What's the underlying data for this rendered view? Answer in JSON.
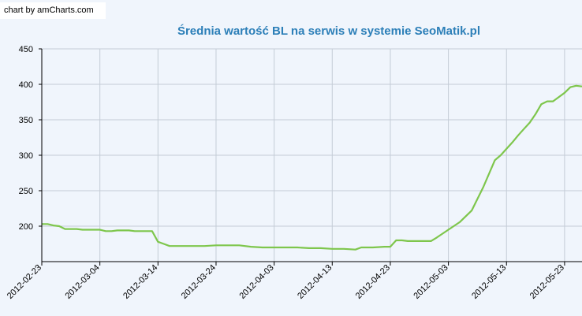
{
  "credit": "chart by amCharts.com",
  "chart_data": {
    "type": "line",
    "title": "Średnia wartość BL na serwis w systemie SeoMatik.pl",
    "xlabel": "",
    "ylabel": "",
    "ylim": [
      150,
      450
    ],
    "xlim": [
      "2012-02-23",
      "2012-05-26"
    ],
    "grid": true,
    "y_ticks": [
      "200",
      "250",
      "300",
      "350",
      "400",
      "450"
    ],
    "x_ticks": [
      "2012-02-23",
      "2012-03-04",
      "2012-03-14",
      "2012-03-24",
      "2012-04-03",
      "2012-04-13",
      "2012-04-23",
      "2012-05-03",
      "2012-05-13",
      "2012-05-23"
    ],
    "series": [
      {
        "color": "#7ec64c",
        "x": [
          "2012-02-23",
          "2012-02-24",
          "2012-02-25",
          "2012-02-26",
          "2012-02-27",
          "2012-02-28",
          "2012-02-29",
          "2012-03-01",
          "2012-03-02",
          "2012-03-03",
          "2012-03-04",
          "2012-03-05",
          "2012-03-06",
          "2012-03-07",
          "2012-03-08",
          "2012-03-09",
          "2012-03-10",
          "2012-03-11",
          "2012-03-12",
          "2012-03-13",
          "2012-03-14",
          "2012-03-15",
          "2012-03-16",
          "2012-03-18",
          "2012-03-20",
          "2012-03-22",
          "2012-03-24",
          "2012-03-26",
          "2012-03-28",
          "2012-03-30",
          "2012-04-01",
          "2012-04-03",
          "2012-04-05",
          "2012-04-07",
          "2012-04-09",
          "2012-04-11",
          "2012-04-13",
          "2012-04-15",
          "2012-04-17",
          "2012-04-18",
          "2012-04-19",
          "2012-04-20",
          "2012-04-22",
          "2012-04-23",
          "2012-04-24",
          "2012-04-25",
          "2012-04-26",
          "2012-04-28",
          "2012-04-30",
          "2012-05-01",
          "2012-05-03",
          "2012-05-05",
          "2012-05-07",
          "2012-05-09",
          "2012-05-11",
          "2012-05-12",
          "2012-05-13",
          "2012-05-14",
          "2012-05-15",
          "2012-05-16",
          "2012-05-17",
          "2012-05-18",
          "2012-05-19",
          "2012-05-20",
          "2012-05-21",
          "2012-05-22",
          "2012-05-23",
          "2012-05-24",
          "2012-05-25",
          "2012-05-26"
        ],
        "values": [
          203,
          203,
          201,
          200,
          196,
          196,
          196,
          195,
          195,
          195,
          195,
          193,
          193,
          194,
          194,
          194,
          193,
          193,
          193,
          193,
          178,
          175,
          172,
          172,
          172,
          172,
          173,
          173,
          173,
          171,
          170,
          170,
          170,
          170,
          169,
          169,
          168,
          168,
          167,
          170,
          170,
          170,
          171,
          171,
          180,
          180,
          179,
          179,
          179,
          184,
          195,
          206,
          222,
          255,
          293,
          300,
          309,
          318,
          328,
          337,
          346,
          358,
          372,
          376,
          376,
          382,
          388,
          396,
          398,
          397
        ]
      }
    ]
  }
}
